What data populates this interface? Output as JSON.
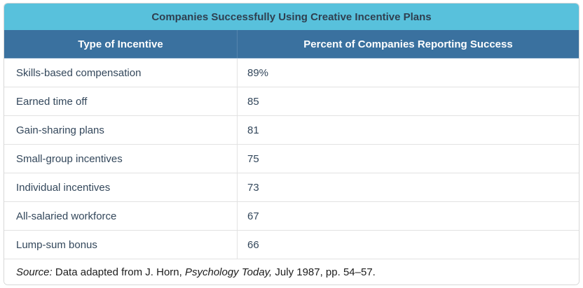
{
  "title_bar": {
    "title": "Companies Successfully Using Creative Incentive Plans"
  },
  "header": {
    "col_type": "Type of Incentive",
    "col_percent": "Percent of Companies Reporting Success"
  },
  "rows": [
    {
      "type": "Skills-based compensation",
      "percent": "89%"
    },
    {
      "type": "Earned time off",
      "percent": "85"
    },
    {
      "type": "Gain-sharing plans",
      "percent": "81"
    },
    {
      "type": "Small-group incentives",
      "percent": "75"
    },
    {
      "type": "Individual incentives",
      "percent": "73"
    },
    {
      "type": "All-salaried workforce",
      "percent": "67"
    },
    {
      "type": "Lump-sum bonus",
      "percent": "66"
    }
  ],
  "source": {
    "label": "Source:",
    "middle": " Data adapted from J. Horn, ",
    "journal": "Psychology Today,",
    "end": " July 1987, pp. 54–57."
  },
  "colors": {
    "title_bg": "#58C1DC",
    "title_text": "#2F3F50",
    "header_bg": "#3A719F",
    "header_text": "#FFFFFF",
    "row_text": "#33475B",
    "source_text": "#1C1C1C",
    "row_border": "#E2E2E2",
    "outer_border": "#D8D8D8"
  },
  "chart_data": {
    "type": "table",
    "title": "Companies Successfully Using Creative Incentive Plans",
    "columns": [
      "Type of Incentive",
      "Percent of Companies Reporting Success"
    ],
    "categories": [
      "Skills-based compensation",
      "Earned time off",
      "Gain-sharing plans",
      "Small-group incentives",
      "Individual incentives",
      "All-salaried workforce",
      "Lump-sum bonus"
    ],
    "values": [
      89,
      85,
      81,
      75,
      73,
      67,
      66
    ],
    "value_unit": "percent",
    "source": "Source: Data adapted from J. Horn, Psychology Today, July 1987, pp. 54–57."
  }
}
